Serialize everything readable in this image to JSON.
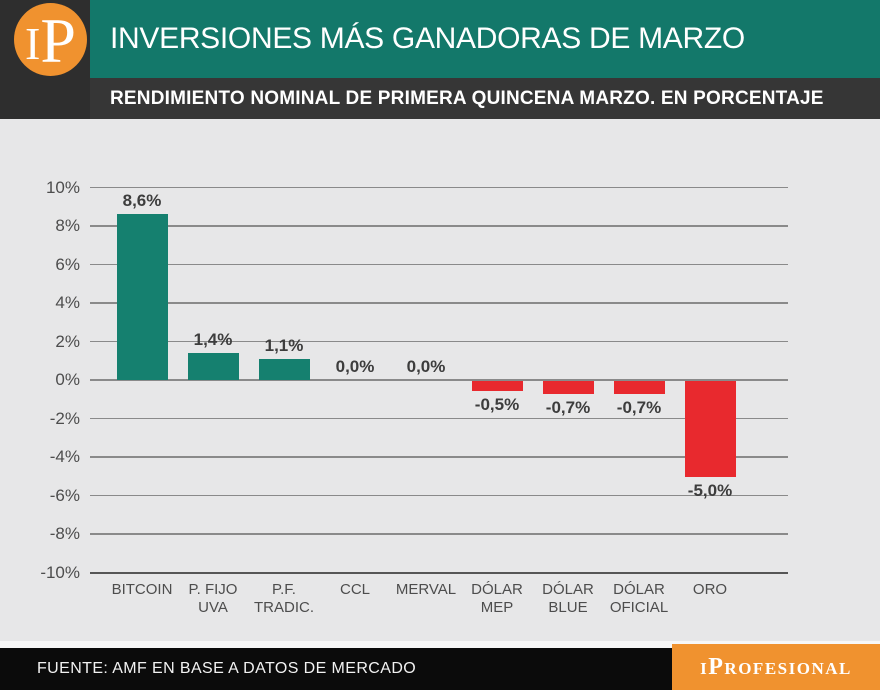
{
  "header": {
    "logo": {
      "i": "I",
      "p": "P"
    },
    "title": "INVERSIONES MÁS GANADORAS DE MARZO",
    "subtitle": "RENDIMIENTO NOMINAL DE PRIMERA QUINCENA MARZO. EN PORCENTAJE"
  },
  "chart_data": {
    "type": "bar",
    "title": "RENDIMIENTO NOMINAL DE PRIMERA QUINCENA MARZO. EN PORCENTAJE",
    "xlabel": "",
    "ylabel": "",
    "ylim": [
      -10,
      10
    ],
    "ytick_step": 2,
    "ytick_labels": [
      "10%",
      "8%",
      "6%",
      "4%",
      "2%",
      "0%",
      "-2%",
      "-4%",
      "-6%",
      "-8%",
      "-10%"
    ],
    "grid": true,
    "legend": false,
    "positive_color": "#15806F",
    "negative_color": "#E8292E",
    "categories": [
      {
        "label": "BITCOIN",
        "lines": [
          "BITCOIN"
        ],
        "value": 8.6,
        "value_label": "8,6%"
      },
      {
        "label": "P. FIJO UVA",
        "lines": [
          "P. FIJO",
          "UVA"
        ],
        "value": 1.4,
        "value_label": "1,4%"
      },
      {
        "label": "P.F. TRADIC.",
        "lines": [
          "P.F.",
          "TRADIC."
        ],
        "value": 1.1,
        "value_label": "1,1%"
      },
      {
        "label": "CCL",
        "lines": [
          "CCL"
        ],
        "value": 0.0,
        "value_label": "0,0%"
      },
      {
        "label": "MERVAL",
        "lines": [
          "MERVAL"
        ],
        "value": 0.0,
        "value_label": "0,0%"
      },
      {
        "label": "DÓLAR MEP",
        "lines": [
          "DÓLAR",
          "MEP"
        ],
        "value": -0.5,
        "value_label": "-0,5%"
      },
      {
        "label": "DÓLAR BLUE",
        "lines": [
          "DÓLAR",
          "BLUE"
        ],
        "value": -0.7,
        "value_label": "-0,7%"
      },
      {
        "label": "DÓLAR OFICIAL",
        "lines": [
          "DÓLAR",
          "OFICIAL"
        ],
        "value": -0.7,
        "value_label": "-0,7%"
      },
      {
        "label": "ORO",
        "lines": [
          "ORO"
        ],
        "value": -5.0,
        "value_label": "-5,0%"
      }
    ]
  },
  "footer": {
    "source": "FUENTE: AMF EN BASE A DATOS DE MERCADO",
    "brand": "iProfesional"
  },
  "colors": {
    "accent_teal": "#13786A",
    "panel_dark": "#363636",
    "brand_orange": "#F0922F",
    "footer_black": "#0B0B0B",
    "chart_bg": "#E7E7E8",
    "bar_positive": "#15806F",
    "bar_negative": "#E8292E",
    "grid_line": "#8A8A8A"
  }
}
